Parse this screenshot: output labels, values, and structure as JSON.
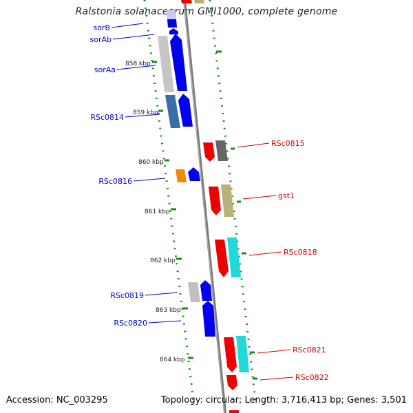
{
  "title": "Ralstonia solanacearum GMI1000, complete genome",
  "footer": {
    "accession": "Accession: NC_003295",
    "summary": "Topology: circular; Length: 3,716,413 bp; Genes: 3,501"
  },
  "colors": {
    "forward_label": "#0000cc",
    "reverse_label": "#cc0000",
    "backbone": "#888888",
    "gc_dots": "#1a8a1a"
  },
  "ticks": [
    {
      "label": "858 kbp"
    },
    {
      "label": "859 kbp"
    },
    {
      "label": "860 kbp"
    },
    {
      "label": "861 kbp"
    },
    {
      "label": "862 kbp"
    },
    {
      "label": "863 kbp"
    },
    {
      "label": "864 kbp"
    }
  ],
  "genes_forward": [
    {
      "label": "sorB"
    },
    {
      "label": "sorAb"
    },
    {
      "label": "sorAa"
    },
    {
      "label": "RSc0814"
    },
    {
      "label": "RSc0816"
    },
    {
      "label": "RSc0819"
    },
    {
      "label": "RSc0820"
    }
  ],
  "genes_reverse": [
    {
      "label": "RSc0815"
    },
    {
      "label": "gst1"
    },
    {
      "label": "RSc0818"
    },
    {
      "label": "RSc0821"
    },
    {
      "label": "RSc0822"
    }
  ]
}
